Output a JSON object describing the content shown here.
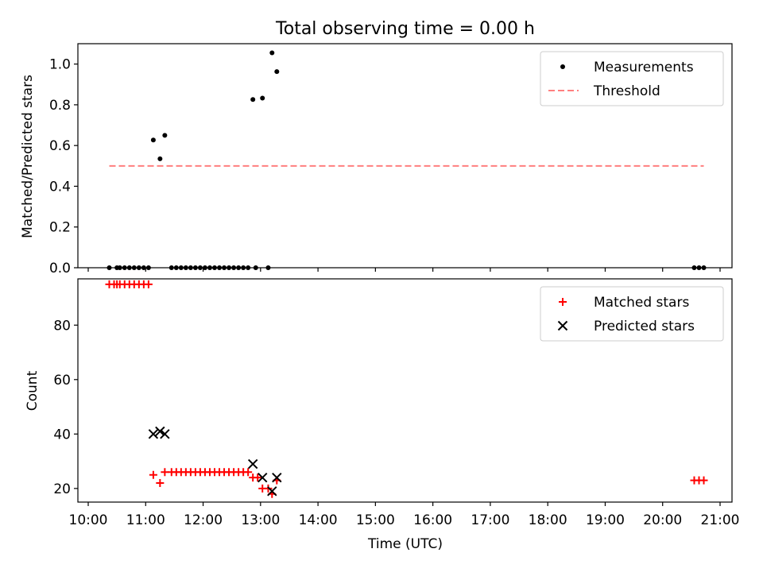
{
  "chart_data": [
    {
      "type": "scatter",
      "title": "Total observing time = 0.00 h",
      "xlabel": "",
      "ylabel": "Matched/Predicted stars",
      "xlim": [
        "10:00",
        "21:00"
      ],
      "ylim": [
        0,
        1.1
      ],
      "yticks": [
        "0.0",
        "0.2",
        "0.4",
        "0.6",
        "0.8",
        "1.0"
      ],
      "grid": false,
      "legend_position": "top-right",
      "series": [
        {
          "name": "Measurements",
          "marker": "dot",
          "color": "#000000",
          "points": [
            [
              "10:22",
              0
            ],
            [
              "10:30",
              0
            ],
            [
              "10:33",
              0
            ],
            [
              "10:38",
              0
            ],
            [
              "10:43",
              0
            ],
            [
              "10:48",
              0
            ],
            [
              "10:53",
              0
            ],
            [
              "10:58",
              0
            ],
            [
              "11:03",
              0
            ],
            [
              "11:08",
              0.627
            ],
            [
              "11:15",
              0.535
            ],
            [
              "11:20",
              0.65
            ],
            [
              "11:27",
              0
            ],
            [
              "11:32",
              0
            ],
            [
              "11:37",
              0
            ],
            [
              "11:42",
              0
            ],
            [
              "11:47",
              0
            ],
            [
              "11:52",
              0
            ],
            [
              "11:57",
              0
            ],
            [
              "12:02",
              0
            ],
            [
              "12:07",
              0
            ],
            [
              "12:12",
              0
            ],
            [
              "12:17",
              0
            ],
            [
              "12:22",
              0
            ],
            [
              "12:27",
              0
            ],
            [
              "12:32",
              0
            ],
            [
              "12:37",
              0
            ],
            [
              "12:42",
              0
            ],
            [
              "12:47",
              0
            ],
            [
              "12:52",
              0.826
            ],
            [
              "12:55",
              0
            ],
            [
              "13:02",
              0.833
            ],
            [
              "13:08",
              0
            ],
            [
              "13:12",
              1.055
            ],
            [
              "13:17",
              0.963
            ],
            [
              "20:33",
              0
            ],
            [
              "20:38",
              0
            ],
            [
              "20:43",
              0
            ]
          ]
        },
        {
          "name": "Threshold",
          "style": "dashed",
          "color": "#ff7f7f",
          "points": [
            [
              "10:22",
              0.5
            ],
            [
              "20:43",
              0.5
            ]
          ]
        }
      ]
    },
    {
      "type": "scatter",
      "title": "",
      "xlabel": "Time (UTC)",
      "ylabel": "Count",
      "xlim": [
        "10:00",
        "21:00"
      ],
      "ylim": [
        15,
        97
      ],
      "xticks": [
        "10:00",
        "11:00",
        "12:00",
        "13:00",
        "14:00",
        "15:00",
        "16:00",
        "17:00",
        "18:00",
        "19:00",
        "20:00",
        "21:00"
      ],
      "yticks": [
        "20",
        "40",
        "60",
        "80"
      ],
      "grid": false,
      "legend_position": "top-right",
      "series": [
        {
          "name": "Matched stars",
          "marker": "plus",
          "color": "#ff0000",
          "points": [
            [
              "10:22",
              95
            ],
            [
              "10:27",
              95
            ],
            [
              "10:30",
              95
            ],
            [
              "10:33",
              95
            ],
            [
              "10:38",
              95
            ],
            [
              "10:43",
              95
            ],
            [
              "10:48",
              95
            ],
            [
              "10:53",
              95
            ],
            [
              "10:58",
              95
            ],
            [
              "11:03",
              95
            ],
            [
              "11:08",
              25
            ],
            [
              "11:15",
              22
            ],
            [
              "11:20",
              26
            ],
            [
              "11:27",
              26
            ],
            [
              "11:32",
              26
            ],
            [
              "11:37",
              26
            ],
            [
              "11:42",
              26
            ],
            [
              "11:47",
              26
            ],
            [
              "11:52",
              26
            ],
            [
              "11:57",
              26
            ],
            [
              "12:02",
              26
            ],
            [
              "12:07",
              26
            ],
            [
              "12:12",
              26
            ],
            [
              "12:17",
              26
            ],
            [
              "12:22",
              26
            ],
            [
              "12:27",
              26
            ],
            [
              "12:32",
              26
            ],
            [
              "12:37",
              26
            ],
            [
              "12:42",
              26
            ],
            [
              "12:47",
              26
            ],
            [
              "12:52",
              24
            ],
            [
              "12:57",
              24
            ],
            [
              "13:02",
              20
            ],
            [
              "13:08",
              20
            ],
            [
              "13:12",
              18
            ],
            [
              "13:17",
              23
            ],
            [
              "20:33",
              23
            ],
            [
              "20:38",
              23
            ],
            [
              "20:43",
              23
            ]
          ]
        },
        {
          "name": "Predicted stars",
          "marker": "x",
          "color": "#000000",
          "points": [
            [
              "11:08",
              40
            ],
            [
              "11:15",
              41
            ],
            [
              "11:20",
              40
            ],
            [
              "12:52",
              29
            ],
            [
              "13:02",
              24
            ],
            [
              "13:12",
              19
            ],
            [
              "13:17",
              24
            ]
          ]
        }
      ]
    }
  ]
}
